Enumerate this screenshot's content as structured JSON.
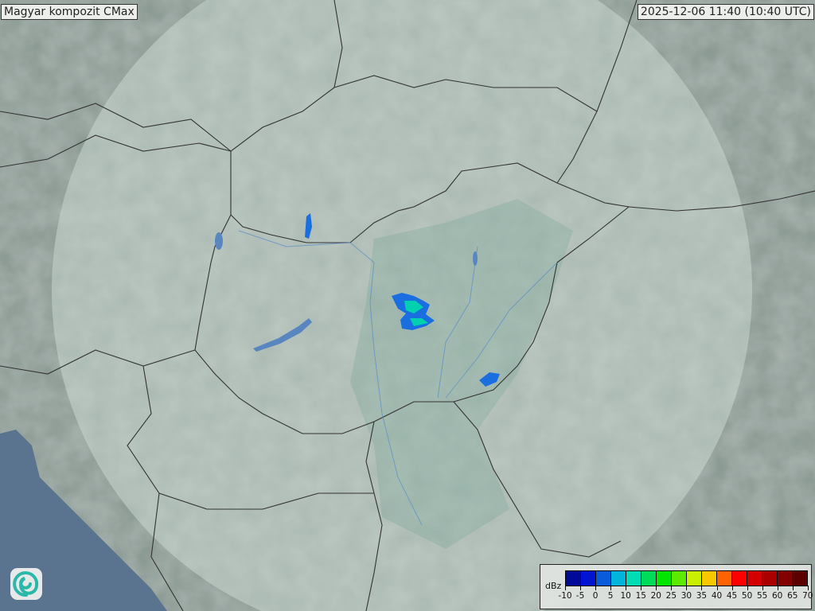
{
  "header": {
    "title": "Magyar kompozit  CMax",
    "timestamp": "2025-12-06 11:40 (10:40 UTC)"
  },
  "legend": {
    "unit": "dBz",
    "ticks": [
      "-10",
      "-5",
      "0",
      "5",
      "10",
      "15",
      "20",
      "25",
      "30",
      "35",
      "40",
      "45",
      "50",
      "55",
      "60",
      "65",
      "70"
    ],
    "colors": [
      "#000a96",
      "#0014d2",
      "#0a5adc",
      "#00b4dc",
      "#00dcb4",
      "#00dc5a",
      "#00e600",
      "#5aeb00",
      "#c8f000",
      "#f5c800",
      "#ff6400",
      "#ff0000",
      "#d20000",
      "#aa0000",
      "#820000",
      "#5a0000"
    ]
  },
  "map": {
    "land_color": "#8c9a94",
    "coverage_color": "#c8d8d0",
    "sea_color": "#5a7490",
    "border_color": "#333333",
    "river_color": "#5a8cc8"
  },
  "logo": {
    "icon": "swirl-logo-icon"
  }
}
